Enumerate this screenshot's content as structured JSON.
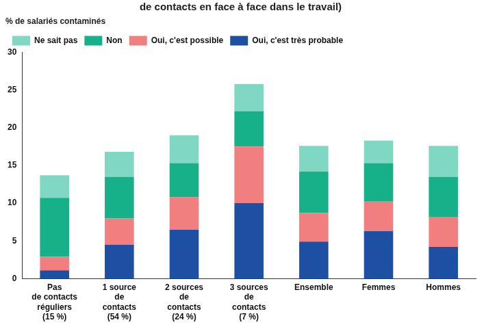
{
  "chart_data": {
    "type": "bar",
    "title": "de contacts en face à face dans le travail)",
    "y_label": "% de salariés contaminés",
    "categories": [
      [
        "Pas",
        "de contacts",
        "réguliers",
        "(15 %)"
      ],
      [
        "1 source",
        "de",
        "contacts",
        "(54 %)"
      ],
      [
        "2 sources",
        "de",
        "contacts",
        "(24 %)"
      ],
      [
        "3 sources",
        "de",
        "contacts",
        "(7 %)"
      ],
      "Ensemble",
      "Femmes",
      "Hommes"
    ],
    "series": [
      {
        "name": "Oui, c'est très probable",
        "color": "#1d4fa2",
        "values": [
          1.1,
          4.5,
          6.5,
          10.0,
          4.9,
          6.3,
          4.2
        ]
      },
      {
        "name": "Oui, c'est possible",
        "color": "#f27f80",
        "values": [
          1.8,
          3.5,
          4.3,
          7.5,
          3.8,
          3.9,
          4.0
        ]
      },
      {
        "name": "Non",
        "color": "#17b189",
        "values": [
          7.8,
          5.5,
          4.5,
          4.7,
          5.5,
          5.1,
          5.3
        ]
      },
      {
        "name": "Ne sait pas",
        "color": "#80d8c2",
        "values": [
          3.0,
          3.3,
          3.7,
          3.6,
          3.4,
          3.0,
          4.1
        ]
      }
    ],
    "stacked": true,
    "ylim": [
      0,
      30
    ],
    "yticks": [
      0,
      5,
      10,
      15,
      20,
      25,
      30
    ],
    "grid": false,
    "legend": "top-left"
  }
}
